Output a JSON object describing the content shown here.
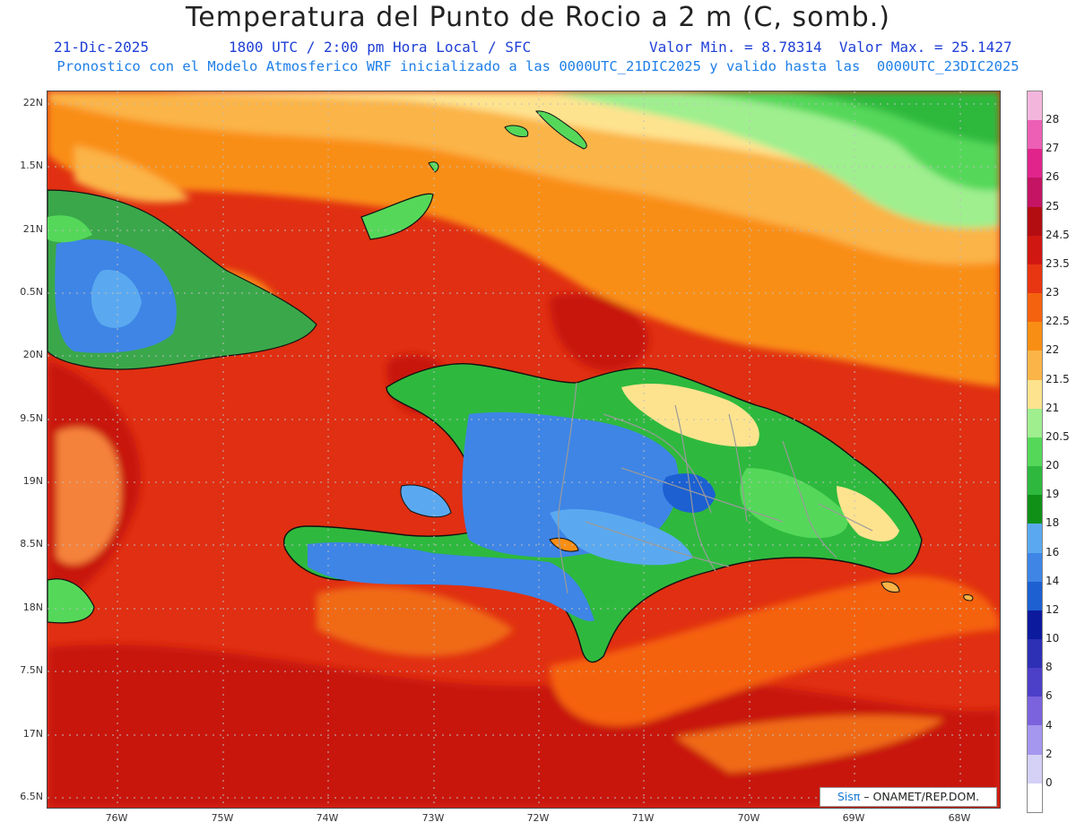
{
  "header": {
    "title": "Temperatura del Punto de Rocio a 2 m (C, somb.)",
    "date": "21-Dic-2025",
    "time": "1800 UTC / 2:00 pm Hora Local / SFC",
    "minmax": "Valor Min. = 8.78314  Valor Max. = 25.1427",
    "model_info": "Pronostico con el Modelo Atmosferico WRF inicializado a las 0000UTC_21DIC2025 y valido hasta las  0000UTC_23DIC2025"
  },
  "axes": {
    "lat_labels": [
      "22N",
      "1.5N",
      "21N",
      "0.5N",
      "20N",
      "9.5N",
      "19N",
      "8.5N",
      "18N",
      "7.5N",
      "17N",
      "6.5N"
    ],
    "lon_labels": [
      "76W",
      "75W",
      "74W",
      "73W",
      "72W",
      "71W",
      "70W",
      "69W",
      "68W"
    ]
  },
  "credit": {
    "sis": "Sisπ",
    "org": " – ONAMET/REP.DOM."
  },
  "legend": {
    "labels": [
      "28",
      "27",
      "26",
      "25",
      "24.5",
      "23.5",
      "23",
      "22.5",
      "22",
      "21.5",
      "21",
      "20.5",
      "20",
      "19",
      "18",
      "16",
      "14",
      "12",
      "10",
      "8",
      "6",
      "4",
      "2",
      "0"
    ],
    "colors": [
      "#f4b5dc",
      "#ec5fb4",
      "#e0248c",
      "#c41463",
      "#b30d12",
      "#d11711",
      "#e83512",
      "#f5620f",
      "#f98e14",
      "#fbb447",
      "#fee38f",
      "#9fef8f",
      "#55d85a",
      "#2eb93e",
      "#109017",
      "#5aa9f0",
      "#3e85e6",
      "#1c60d2",
      "#0c1a9e",
      "#2d2fb5",
      "#4c3fc8",
      "#7b63dd",
      "#a596ef",
      "#d4d0f6",
      "#ffffff"
    ]
  }
}
